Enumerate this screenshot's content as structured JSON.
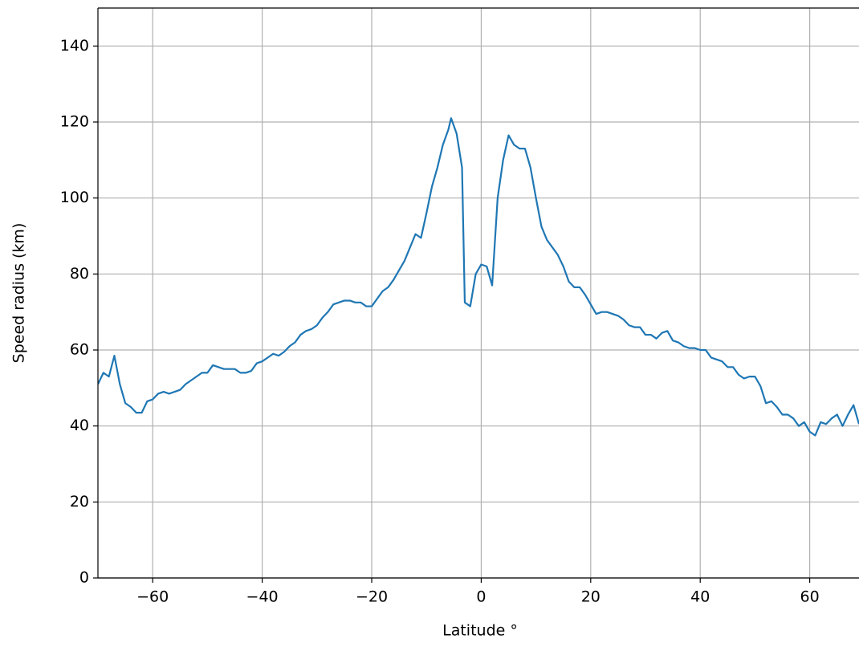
{
  "chart_data": {
    "type": "line",
    "xlabel": "Latitude °",
    "ylabel": "Speed radius (km)",
    "x": [
      -70,
      -69,
      -68,
      -67,
      -66,
      -65,
      -64,
      -63,
      -62,
      -61,
      -60,
      -59,
      -58,
      -57,
      -56,
      -55,
      -54,
      -53,
      -52,
      -51,
      -50,
      -49,
      -48,
      -47,
      -46,
      -45,
      -44,
      -43,
      -42,
      -41,
      -40,
      -39,
      -38,
      -37,
      -36,
      -35,
      -34,
      -33,
      -32,
      -31,
      -30,
      -29,
      -28,
      -27,
      -26,
      -25,
      -24,
      -23,
      -22,
      -21,
      -20,
      -19,
      -18,
      -17,
      -16,
      -15,
      -14,
      -13,
      -12,
      -11,
      -10,
      -9,
      -8,
      -7,
      -6,
      -5.5,
      -5,
      -4.5,
      -3.5,
      -3,
      -2,
      -1,
      0,
      1,
      2,
      3,
      4,
      5,
      6,
      7,
      8,
      9,
      10,
      11,
      12,
      13,
      14,
      15,
      16,
      17,
      18,
      19,
      20,
      21,
      22,
      23,
      24,
      25,
      26,
      27,
      28,
      29,
      30,
      31,
      32,
      33,
      34,
      35,
      36,
      37,
      38,
      39,
      40,
      41,
      42,
      43,
      44,
      45,
      46,
      47,
      48,
      49,
      50,
      51,
      52,
      53,
      54,
      55,
      56,
      57,
      58,
      59,
      60,
      61,
      62,
      63,
      64,
      65,
      66,
      67,
      68,
      69
    ],
    "series": [
      {
        "name": "speed radius",
        "color": "#1f77b4",
        "values": [
          51,
          54,
          53,
          58.5,
          51,
          46,
          45,
          43.5,
          43.5,
          46.5,
          47,
          48.5,
          49,
          48.5,
          49,
          49.5,
          51,
          52,
          53,
          54,
          54,
          56,
          55.5,
          55,
          55,
          55,
          54,
          54,
          54.5,
          56.5,
          57,
          58,
          59,
          58.5,
          59.5,
          61,
          62,
          64,
          65,
          65.5,
          66.5,
          68.5,
          70,
          72,
          72.5,
          73,
          73,
          72.5,
          72.5,
          71.5,
          71.5,
          73.5,
          75.5,
          76.5,
          78.5,
          81,
          83.5,
          87,
          90.5,
          89.5,
          96,
          103,
          108,
          114,
          118,
          121,
          119,
          117,
          108,
          72.5,
          71.5,
          80,
          82.5,
          82,
          77,
          100,
          110,
          116.5,
          114,
          113,
          113,
          108,
          100,
          92.5,
          89,
          87,
          85,
          82,
          78,
          76.5,
          76.5,
          74.5,
          72,
          69.5,
          70,
          70,
          69.5,
          69,
          68,
          66.5,
          66,
          66,
          64,
          64,
          63,
          64.5,
          65,
          62.5,
          62,
          61,
          60.5,
          60.5,
          60,
          60,
          58,
          57.5,
          57,
          55.5,
          55.5,
          53.5,
          52.5,
          53,
          53,
          50.5,
          46,
          46.5,
          45,
          43,
          43,
          42,
          40,
          41,
          38.5,
          37.5,
          41,
          40.5,
          42,
          43,
          40,
          43,
          45.5,
          40.5
        ]
      }
    ],
    "xlim": [
      -70,
      69
    ],
    "ylim": [
      0,
      150
    ],
    "xticks": [
      {
        "value": -60,
        "label": "−60"
      },
      {
        "value": -40,
        "label": "−40"
      },
      {
        "value": -20,
        "label": "−20"
      },
      0,
      20,
      40,
      60
    ],
    "yticks": [
      0,
      20,
      40,
      60,
      80,
      100,
      120,
      140
    ],
    "grid": true
  }
}
